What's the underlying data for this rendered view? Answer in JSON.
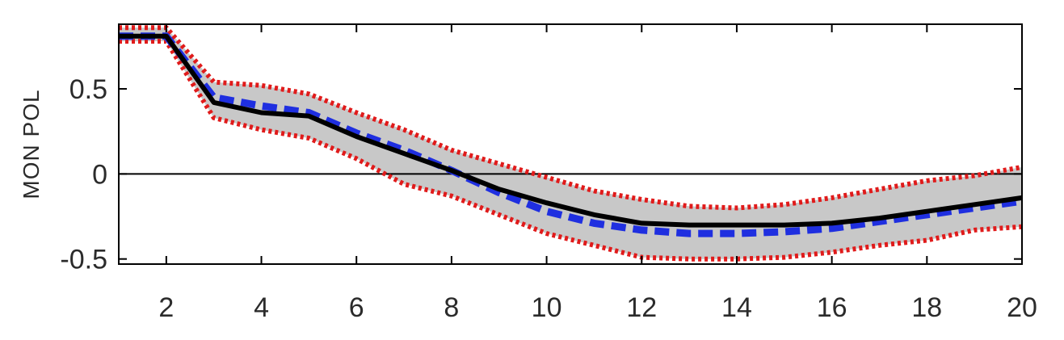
{
  "chart_data": {
    "type": "line",
    "title": "",
    "xlabel": "",
    "ylabel": "MON POL",
    "xlim": [
      1,
      20
    ],
    "ylim": [
      -0.53,
      0.88
    ],
    "xticks": [
      2,
      4,
      6,
      8,
      10,
      12,
      14,
      16,
      18,
      20
    ],
    "xtick_labels": [
      "2",
      "4",
      "6",
      "8",
      "10",
      "12",
      "14",
      "16",
      "18",
      "20"
    ],
    "yticks": [
      -0.5,
      0,
      0.5
    ],
    "ytick_labels": [
      "-0.5",
      "0",
      "0.5"
    ],
    "zero_line": true,
    "grid": false,
    "legend": "none",
    "x": [
      1,
      2,
      3,
      4,
      5,
      6,
      7,
      8,
      9,
      10,
      11,
      12,
      13,
      14,
      15,
      16,
      17,
      18,
      19,
      20
    ],
    "band": {
      "lower": [
        0.78,
        0.78,
        0.33,
        0.26,
        0.21,
        0.09,
        -0.06,
        -0.13,
        -0.24,
        -0.35,
        -0.42,
        -0.49,
        -0.5,
        -0.5,
        -0.49,
        -0.46,
        -0.42,
        -0.39,
        -0.33,
        -0.31
      ],
      "upper": [
        0.86,
        0.86,
        0.54,
        0.52,
        0.47,
        0.36,
        0.26,
        0.14,
        0.06,
        -0.02,
        -0.1,
        -0.15,
        -0.19,
        -0.2,
        -0.18,
        -0.14,
        -0.09,
        -0.04,
        -0.01,
        0.04
      ],
      "color": "#c8c8c8"
    },
    "series": [
      {
        "values": [
          0.81,
          0.81,
          0.42,
          0.36,
          0.34,
          0.22,
          0.12,
          0.02,
          -0.09,
          -0.17,
          -0.24,
          -0.29,
          -0.3,
          -0.3,
          -0.3,
          -0.29,
          -0.26,
          -0.22,
          -0.18,
          -0.14
        ],
        "color": "#000000",
        "style": "solid"
      },
      {
        "values": [
          0.81,
          0.81,
          0.45,
          0.4,
          0.36,
          0.24,
          0.14,
          0.02,
          -0.11,
          -0.22,
          -0.29,
          -0.33,
          -0.35,
          -0.35,
          -0.34,
          -0.32,
          -0.28,
          -0.24,
          -0.2,
          -0.16
        ],
        "color": "#1f2fe0",
        "style": "dashed"
      },
      {
        "values": [
          0.86,
          0.86,
          0.54,
          0.52,
          0.47,
          0.36,
          0.26,
          0.14,
          0.06,
          -0.02,
          -0.1,
          -0.15,
          -0.19,
          -0.2,
          -0.18,
          -0.14,
          -0.09,
          -0.04,
          -0.01,
          0.04
        ],
        "color": "#e01b1b",
        "style": "dotted"
      },
      {
        "values": [
          0.78,
          0.78,
          0.33,
          0.26,
          0.21,
          0.09,
          -0.06,
          -0.13,
          -0.24,
          -0.35,
          -0.42,
          -0.49,
          -0.5,
          -0.5,
          -0.49,
          -0.46,
          -0.42,
          -0.39,
          -0.33,
          -0.31
        ],
        "color": "#e01b1b",
        "style": "dotted"
      }
    ]
  }
}
